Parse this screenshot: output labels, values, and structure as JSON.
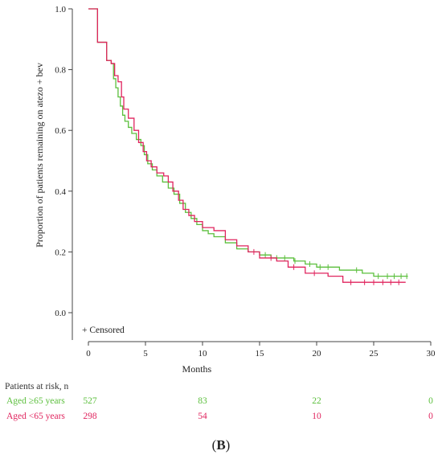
{
  "chart_data": {
    "type": "line",
    "subtype": "kaplan-meier",
    "xlabel": "Months",
    "ylabel": "Proportion of patients remaining on atezo + bev",
    "xlim": [
      -1,
      30
    ],
    "ylim": [
      -0.1,
      1.0
    ],
    "xticks": [
      "0",
      "5",
      "10",
      "15",
      "20",
      "25",
      "30"
    ],
    "yticks": [
      "0.0",
      "0.2",
      "0.4",
      "0.6",
      "0.8",
      "1.0"
    ],
    "legend": {
      "censored_label": "+ Censored",
      "placement": "bottom-left"
    },
    "series": [
      {
        "name": "Aged ≥65 years",
        "color": "#5bbf3c",
        "steps": [
          [
            0,
            1.0
          ],
          [
            0.8,
            0.89
          ],
          [
            1.6,
            0.83
          ],
          [
            2.0,
            0.82
          ],
          [
            2.2,
            0.77
          ],
          [
            2.4,
            0.74
          ],
          [
            2.6,
            0.71
          ],
          [
            2.8,
            0.68
          ],
          [
            3.0,
            0.65
          ],
          [
            3.2,
            0.63
          ],
          [
            3.5,
            0.61
          ],
          [
            3.8,
            0.59
          ],
          [
            4.2,
            0.57
          ],
          [
            4.6,
            0.55
          ],
          [
            4.9,
            0.52
          ],
          [
            5.2,
            0.49
          ],
          [
            5.6,
            0.47
          ],
          [
            6.0,
            0.45
          ],
          [
            6.5,
            0.43
          ],
          [
            7.0,
            0.41
          ],
          [
            7.5,
            0.39
          ],
          [
            8.0,
            0.36
          ],
          [
            8.5,
            0.33
          ],
          [
            9.0,
            0.31
          ],
          [
            9.5,
            0.29
          ],
          [
            10.0,
            0.27
          ],
          [
            10.5,
            0.26
          ],
          [
            11.0,
            0.25
          ],
          [
            12.0,
            0.23
          ],
          [
            13.0,
            0.21
          ],
          [
            14.0,
            0.2
          ],
          [
            15.0,
            0.19
          ],
          [
            16.0,
            0.18
          ],
          [
            18.0,
            0.17
          ],
          [
            19.0,
            0.16
          ],
          [
            20.0,
            0.15
          ],
          [
            22.0,
            0.14
          ],
          [
            24.0,
            0.13
          ],
          [
            25.0,
            0.12
          ],
          [
            28.0,
            0.12
          ]
        ],
        "censored_x": [
          15.5,
          16.5,
          17.2,
          18.1,
          19.4,
          20.3,
          21.0,
          23.5,
          25.4,
          26.2,
          26.8,
          27.4,
          27.9
        ],
        "at_risk": [
          "527",
          "83",
          "22",
          "0"
        ]
      },
      {
        "name": "Aged <65 years",
        "color": "#e0245e",
        "steps": [
          [
            0,
            1.0
          ],
          [
            0.8,
            0.89
          ],
          [
            1.6,
            0.83
          ],
          [
            2.0,
            0.82
          ],
          [
            2.3,
            0.78
          ],
          [
            2.6,
            0.76
          ],
          [
            2.9,
            0.71
          ],
          [
            3.1,
            0.67
          ],
          [
            3.5,
            0.64
          ],
          [
            4.0,
            0.6
          ],
          [
            4.4,
            0.56
          ],
          [
            4.8,
            0.53
          ],
          [
            5.1,
            0.5
          ],
          [
            5.5,
            0.48
          ],
          [
            6.0,
            0.46
          ],
          [
            6.6,
            0.45
          ],
          [
            7.0,
            0.43
          ],
          [
            7.4,
            0.4
          ],
          [
            7.9,
            0.37
          ],
          [
            8.3,
            0.34
          ],
          [
            8.8,
            0.32
          ],
          [
            9.3,
            0.3
          ],
          [
            10.0,
            0.28
          ],
          [
            11.0,
            0.27
          ],
          [
            12.0,
            0.24
          ],
          [
            13.0,
            0.22
          ],
          [
            14.0,
            0.2
          ],
          [
            15.0,
            0.18
          ],
          [
            16.5,
            0.17
          ],
          [
            17.5,
            0.15
          ],
          [
            19.0,
            0.13
          ],
          [
            21.0,
            0.12
          ],
          [
            22.3,
            0.1
          ],
          [
            27.8,
            0.1
          ]
        ],
        "censored_x": [
          14.5,
          16.0,
          18.0,
          19.8,
          23.0,
          24.2,
          25.0,
          25.8,
          26.5,
          27.2
        ],
        "at_risk": [
          "298",
          "54",
          "10",
          "0"
        ]
      }
    ],
    "at_risk_x": [
      0,
      10,
      20,
      30
    ]
  },
  "risk_table": {
    "title": "Patients at risk, n"
  },
  "panel_label": {
    "open": "(",
    "letter": "B",
    "close": ")"
  }
}
